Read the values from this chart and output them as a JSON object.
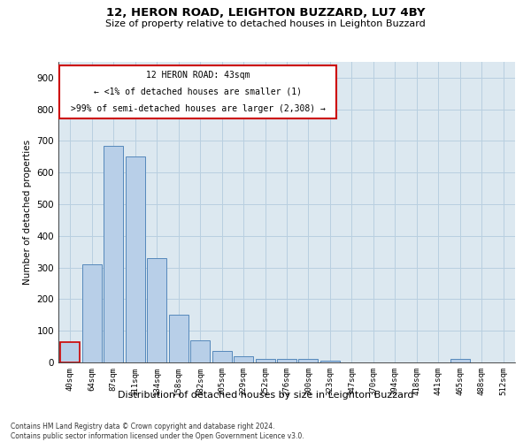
{
  "title": "12, HERON ROAD, LEIGHTON BUZZARD, LU7 4BY",
  "subtitle": "Size of property relative to detached houses in Leighton Buzzard",
  "xlabel": "Distribution of detached houses by size in Leighton Buzzard",
  "ylabel": "Number of detached properties",
  "bar_values": [
    65,
    310,
    685,
    650,
    330,
    150,
    70,
    35,
    20,
    10,
    10,
    10,
    5,
    0,
    0,
    0,
    0,
    0,
    10,
    0,
    0
  ],
  "bar_labels": [
    "40sqm",
    "64sqm",
    "87sqm",
    "111sqm",
    "134sqm",
    "158sqm",
    "182sqm",
    "205sqm",
    "229sqm",
    "252sqm",
    "276sqm",
    "300sqm",
    "323sqm",
    "347sqm",
    "370sqm",
    "394sqm",
    "418sqm",
    "441sqm",
    "465sqm",
    "488sqm",
    "512sqm"
  ],
  "bar_color": "#b8cfe8",
  "bar_edge_color": "#5588bb",
  "ylim": [
    0,
    950
  ],
  "yticks": [
    0,
    100,
    200,
    300,
    400,
    500,
    600,
    700,
    800,
    900
  ],
  "annotation_line1": "12 HERON ROAD: 43sqm",
  "annotation_line2": "← <1% of detached houses are smaller (1)",
  "annotation_line3": ">99% of semi-detached houses are larger (2,308) →",
  "annotation_box_color": "#cc0000",
  "highlight_bar_index": 0,
  "highlight_bar_edge_color": "#cc0000",
  "background_color": "#ffffff",
  "axes_bg_color": "#dce8f0",
  "grid_color": "#b8cfe0",
  "footer_line1": "Contains HM Land Registry data © Crown copyright and database right 2024.",
  "footer_line2": "Contains public sector information licensed under the Open Government Licence v3.0."
}
